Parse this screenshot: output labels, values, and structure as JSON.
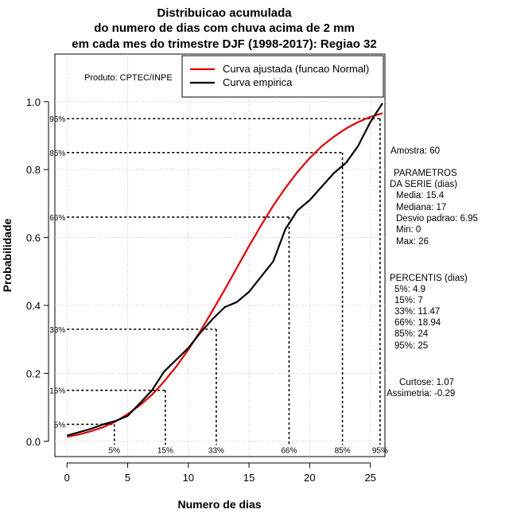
{
  "chart_data": {
    "type": "line",
    "title_lines": [
      "Distribuicao acumulada",
      "do numero de dias com chuva acima de 2 mm",
      "em cada mes do trimestre DJF (1998-2017): Regiao 32"
    ],
    "xlabel": "Numero de dias",
    "ylabel": "Probabilidade",
    "xlim": [
      -1,
      26.2
    ],
    "ylim": [
      -0.045,
      1.14
    ],
    "xticks": [
      0,
      5,
      10,
      15,
      20,
      25
    ],
    "yticks": [
      0.0,
      0.2,
      0.4,
      0.6,
      0.8,
      1.0
    ],
    "xtick_labels": [
      "0",
      "5",
      "10",
      "15",
      "20",
      "25"
    ],
    "ytick_labels": [
      "0.0",
      "0.2",
      "0.4",
      "0.6",
      "0.8",
      "1.0"
    ],
    "grid": true,
    "credit": "Produto: CPTEC/INPE",
    "legend": {
      "position": "top-right",
      "entries": [
        {
          "label": "Curva ajustada (funcao Normal)",
          "color": "#dd0000"
        },
        {
          "label": "Curva empirica",
          "color": "#000000"
        }
      ]
    },
    "series": [
      {
        "name": "Curva ajustada (funcao Normal)",
        "color": "#dd0000",
        "x": [
          0,
          1,
          2,
          3,
          4,
          5,
          6,
          7,
          8,
          9,
          10,
          11,
          12,
          13,
          14,
          15,
          16,
          17,
          18,
          19,
          20,
          21,
          22,
          23,
          24,
          25,
          26
        ],
        "y": [
          0.013,
          0.02,
          0.03,
          0.042,
          0.058,
          0.08,
          0.106,
          0.137,
          0.176,
          0.22,
          0.27,
          0.325,
          0.385,
          0.447,
          0.511,
          0.575,
          0.636,
          0.694,
          0.746,
          0.793,
          0.834,
          0.869,
          0.897,
          0.921,
          0.94,
          0.955,
          0.966
        ]
      },
      {
        "name": "Curva empirica",
        "color": "#000000",
        "x": [
          0,
          1,
          2,
          3,
          4,
          5,
          6,
          7,
          8,
          9,
          10,
          11,
          12,
          13,
          14,
          15,
          16,
          17,
          18,
          19,
          20,
          21,
          22,
          23,
          24,
          25,
          26
        ],
        "y": [
          0.017,
          0.027,
          0.037,
          0.05,
          0.06,
          0.075,
          0.112,
          0.15,
          0.205,
          0.24,
          0.275,
          0.32,
          0.36,
          0.395,
          0.41,
          0.44,
          0.485,
          0.53,
          0.625,
          0.68,
          0.71,
          0.75,
          0.79,
          0.82,
          0.87,
          0.94,
          0.995
        ]
      }
    ],
    "percentile_guides": [
      {
        "label": "5%",
        "p": 0.05,
        "x": 3.9
      },
      {
        "label": "15%",
        "p": 0.15,
        "x": 8.1
      },
      {
        "label": "33%",
        "p": 0.33,
        "x": 12.3
      },
      {
        "label": "66%",
        "p": 0.66,
        "x": 18.3
      },
      {
        "label": "85%",
        "p": 0.85,
        "x": 22.7
      },
      {
        "label": "95%",
        "p": 0.95,
        "x": 25.8
      }
    ],
    "side_panel": [
      "Amostra: 60",
      "PARAMETROS",
      "DA SERIE (dias)",
      "Media: 15.4",
      "Mediana: 17",
      "Desvio padrao: 6.95",
      "Min: 0",
      "Max: 26",
      "PERCENTIS (dias)",
      "5%: 4.9",
      "15%: 7",
      "33%: 11.47",
      "66%: 18.94",
      "85%: 24",
      "95%: 25",
      "Curtose: 1.07",
      "Assimetria: -0.29"
    ]
  }
}
